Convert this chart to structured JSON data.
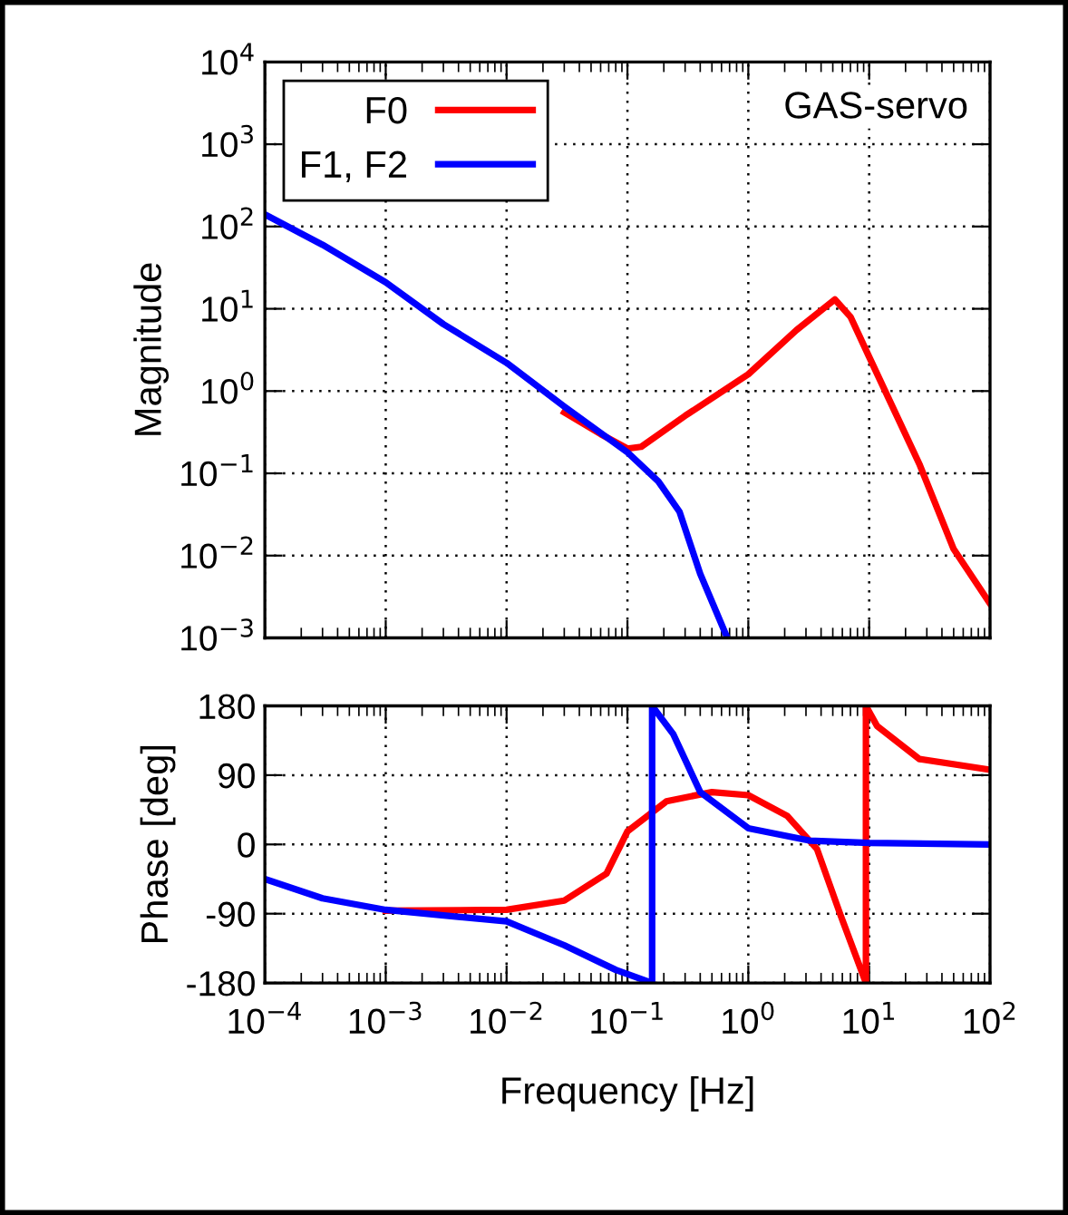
{
  "chart_data": [
    {
      "type": "line",
      "ylabel": "Magnitude",
      "annotations": [
        "GAS-servo"
      ],
      "log": "xy",
      "grid": true,
      "legend": "top left",
      "tick_labels": "y",
      "xlim": [
        0.0001,
        100
      ],
      "xticks": [
        {
          "value": 0.0001,
          "label": null
        },
        {
          "value": 0.001,
          "label": null
        },
        {
          "value": 0.01,
          "label": null
        },
        {
          "value": 0.1,
          "label": null
        },
        {
          "value": 1,
          "label": null
        },
        {
          "value": 10,
          "label": null
        },
        {
          "value": 100,
          "label": null
        }
      ],
      "ylim": [
        0.001,
        10000
      ],
      "yticks": [
        {
          "value": 0.001,
          "label": "10$^{−3}$"
        },
        {
          "value": 0.01,
          "label": "10$^{−2}$"
        },
        {
          "value": 0.1,
          "label": "10$^{−1}$"
        },
        {
          "value": 1,
          "label": "10$^{0}$"
        },
        {
          "value": 10,
          "label": "10$^{1}$"
        },
        {
          "value": 100,
          "label": "10$^{2}$"
        },
        {
          "value": 1000,
          "label": "10$^{3}$"
        },
        {
          "value": 10000,
          "label": "10$^{4}$"
        }
      ],
      "series": [
        {
          "name": "F0",
          "color": "#ff0000",
          "x": [
            0.03,
            0.06,
            0.1,
            0.13,
            0.3,
            1,
            2.5,
            5.2,
            7,
            10,
            26,
            50,
            100
          ],
          "values": [
            0.55,
            0.3,
            0.2,
            0.21,
            0.5,
            1.6,
            5.5,
            13,
            8,
            2.6,
            0.13,
            0.012,
            0.0026
          ]
        },
        {
          "name": "F1, F2",
          "color": "#0000ff",
          "x": [
            0.0001,
            0.0003,
            0.001,
            0.003,
            0.01,
            0.03,
            0.1,
            0.18,
            0.27,
            0.4,
            0.67
          ],
          "values": [
            140,
            60,
            21,
            6.5,
            2.2,
            0.65,
            0.18,
            0.08,
            0.034,
            0.006,
            0.001
          ]
        }
      ]
    },
    {
      "type": "line",
      "xlabel": "Frequency [Hz]",
      "ylabel": "Phase [deg]",
      "log": "x",
      "grid": true,
      "xlim": [
        0.0001,
        100
      ],
      "xticks": [
        {
          "value": 0.0001,
          "label": "10$^{−4}$"
        },
        {
          "value": 0.001,
          "label": "10$^{−3}$"
        },
        {
          "value": 0.01,
          "label": "10$^{−2}$"
        },
        {
          "value": 0.1,
          "label": "10$^{−1}$"
        },
        {
          "value": 1,
          "label": "10$^{0}$"
        },
        {
          "value": 10,
          "label": "10$^{1}$"
        },
        {
          "value": 100,
          "label": "10$^{2}$"
        }
      ],
      "ylim": [
        -180,
        180
      ],
      "yticks": [
        -180,
        -90,
        0,
        90,
        180
      ],
      "series": [
        {
          "color": "#ff0000",
          "x": [
            0.001,
            0.01,
            0.03,
            0.067,
            0.1,
            0.21,
            0.5,
            1,
            2.1,
            3.7,
            5.8,
            9.4,
            9.4,
            11.6,
            26,
            100
          ],
          "values": [
            -86,
            -85,
            -73,
            -38,
            17,
            56,
            68,
            64,
            37,
            -6,
            -92,
            -180,
            180,
            154,
            111,
            97
          ]
        },
        {
          "color": "#0000ff",
          "x": [
            0.0001,
            0.0003,
            0.001,
            0.01,
            0.03,
            0.08,
            0.16,
            0.16,
            0.24,
            0.4,
            1,
            3.2,
            10,
            100
          ],
          "values": [
            -45,
            -70,
            -85,
            -100,
            -131,
            -163,
            -180,
            180,
            143,
            68,
            21,
            5,
            2,
            0
          ]
        }
      ]
    }
  ]
}
